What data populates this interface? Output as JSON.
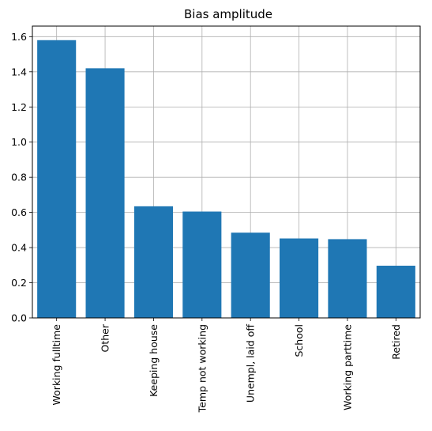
{
  "chart_data": {
    "type": "bar",
    "title": "Bias amplitude",
    "xlabel": "",
    "ylabel": "",
    "categories": [
      "Working fulltime",
      "Other",
      "Keeping house",
      "Temp not working",
      "Unempl, laid off",
      "School",
      "Working parttime",
      "Retired"
    ],
    "values": [
      1.58,
      1.42,
      0.635,
      0.605,
      0.485,
      0.452,
      0.448,
      0.297
    ],
    "ylim": [
      0,
      1.66
    ],
    "yticks": [
      "0.0",
      "0.2",
      "0.4",
      "0.6",
      "0.8",
      "1.0",
      "1.2",
      "1.4",
      "1.6"
    ],
    "grid": true,
    "bar_color": "#1f77b4",
    "grid_color": "#b0b0b0",
    "x_tick_rotation": "vertical"
  }
}
